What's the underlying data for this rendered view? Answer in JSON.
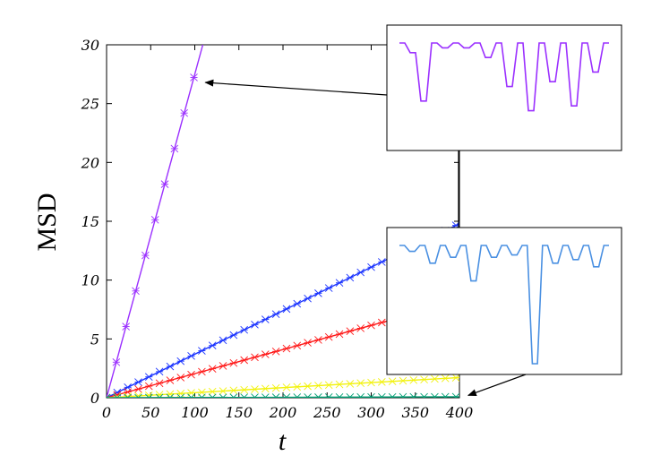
{
  "chart_data": {
    "type": "line",
    "title": "",
    "xlabel": "t",
    "ylabel": "MSD",
    "xlim": [
      0,
      400
    ],
    "ylim": [
      0,
      30
    ],
    "x_ticks": [
      0,
      50,
      100,
      150,
      200,
      250,
      300,
      350,
      400
    ],
    "y_ticks": [
      0,
      5,
      10,
      15,
      20,
      25,
      30
    ],
    "grid": false,
    "legend": "none",
    "series": [
      {
        "slope": 0.275,
        "color": "#9b30ff",
        "marker": "*"
      },
      {
        "slope": 0.037,
        "color": "#1a33ff",
        "marker": "*"
      },
      {
        "slope": 0.0205,
        "color": "#ff1a1a",
        "marker": "*"
      },
      {
        "slope": 0.0043,
        "color": "#f2f20d",
        "marker": "*"
      },
      {
        "slope": 0.0002,
        "color": "#009e73",
        "marker": "*"
      }
    ],
    "insets": [
      {
        "color": "#9b30ff",
        "points_to": {
          "x": 112,
          "y": 26.8
        },
        "trajectory": [
          0,
          0,
          -0.1,
          -0.1,
          -0.6,
          -0.6,
          0,
          0,
          -0.05,
          -0.05,
          0,
          0,
          -0.05,
          -0.05,
          0,
          0,
          -0.15,
          -0.15,
          0,
          0,
          -0.45,
          -0.45,
          0,
          0,
          -0.7,
          -0.7,
          0,
          0,
          -0.4,
          -0.4,
          0,
          0,
          -0.65,
          -0.65,
          0,
          0,
          -0.3,
          -0.3,
          0,
          0
        ]
      },
      {
        "color": "#4a90e2",
        "points_to": {
          "x": 410,
          "y": 0.2
        },
        "trajectory": [
          0,
          0,
          -0.05,
          -0.05,
          0,
          0,
          -0.15,
          -0.15,
          0,
          0,
          -0.1,
          -0.1,
          0,
          0,
          -0.3,
          -0.3,
          0,
          0,
          -0.1,
          -0.1,
          0,
          0,
          -0.08,
          -0.08,
          0,
          0,
          -1,
          -1,
          0,
          0,
          -0.15,
          -0.15,
          0,
          0,
          -0.12,
          -0.12,
          0,
          0,
          -0.18,
          -0.18,
          0,
          0
        ]
      }
    ]
  }
}
